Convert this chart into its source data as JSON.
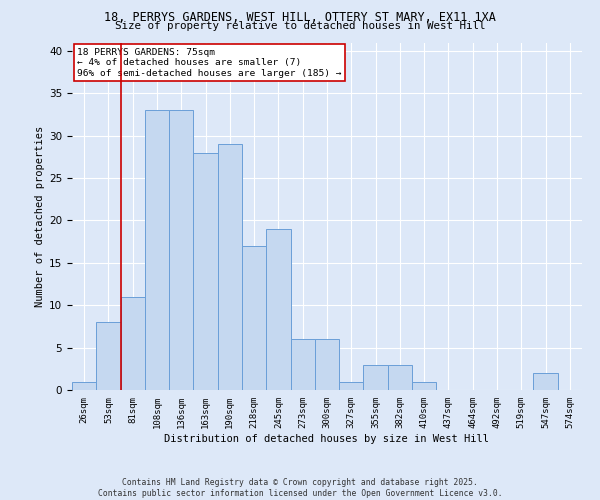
{
  "title_line1": "18, PERRYS GARDENS, WEST HILL, OTTERY ST MARY, EX11 1XA",
  "title_line2": "Size of property relative to detached houses in West Hill",
  "xlabel": "Distribution of detached houses by size in West Hill",
  "ylabel": "Number of detached properties",
  "categories": [
    "26sqm",
    "53sqm",
    "81sqm",
    "108sqm",
    "136sqm",
    "163sqm",
    "190sqm",
    "218sqm",
    "245sqm",
    "273sqm",
    "300sqm",
    "327sqm",
    "355sqm",
    "382sqm",
    "410sqm",
    "437sqm",
    "464sqm",
    "492sqm",
    "519sqm",
    "547sqm",
    "574sqm"
  ],
  "values": [
    1,
    8,
    11,
    33,
    33,
    28,
    29,
    17,
    19,
    6,
    6,
    1,
    3,
    3,
    1,
    0,
    0,
    0,
    0,
    2,
    0
  ],
  "bar_color": "#c5d8f0",
  "bar_edge_color": "#6a9fd8",
  "highlight_color": "#cc0000",
  "ylim": [
    0,
    41
  ],
  "yticks": [
    0,
    5,
    10,
    15,
    20,
    25,
    30,
    35,
    40
  ],
  "annotation_text": "18 PERRYS GARDENS: 75sqm\n← 4% of detached houses are smaller (7)\n96% of semi-detached houses are larger (185) →",
  "footer_text": "Contains HM Land Registry data © Crown copyright and database right 2025.\nContains public sector information licensed under the Open Government Licence v3.0.",
  "background_color": "#dde8f8",
  "plot_bg_color": "#dde8f8"
}
